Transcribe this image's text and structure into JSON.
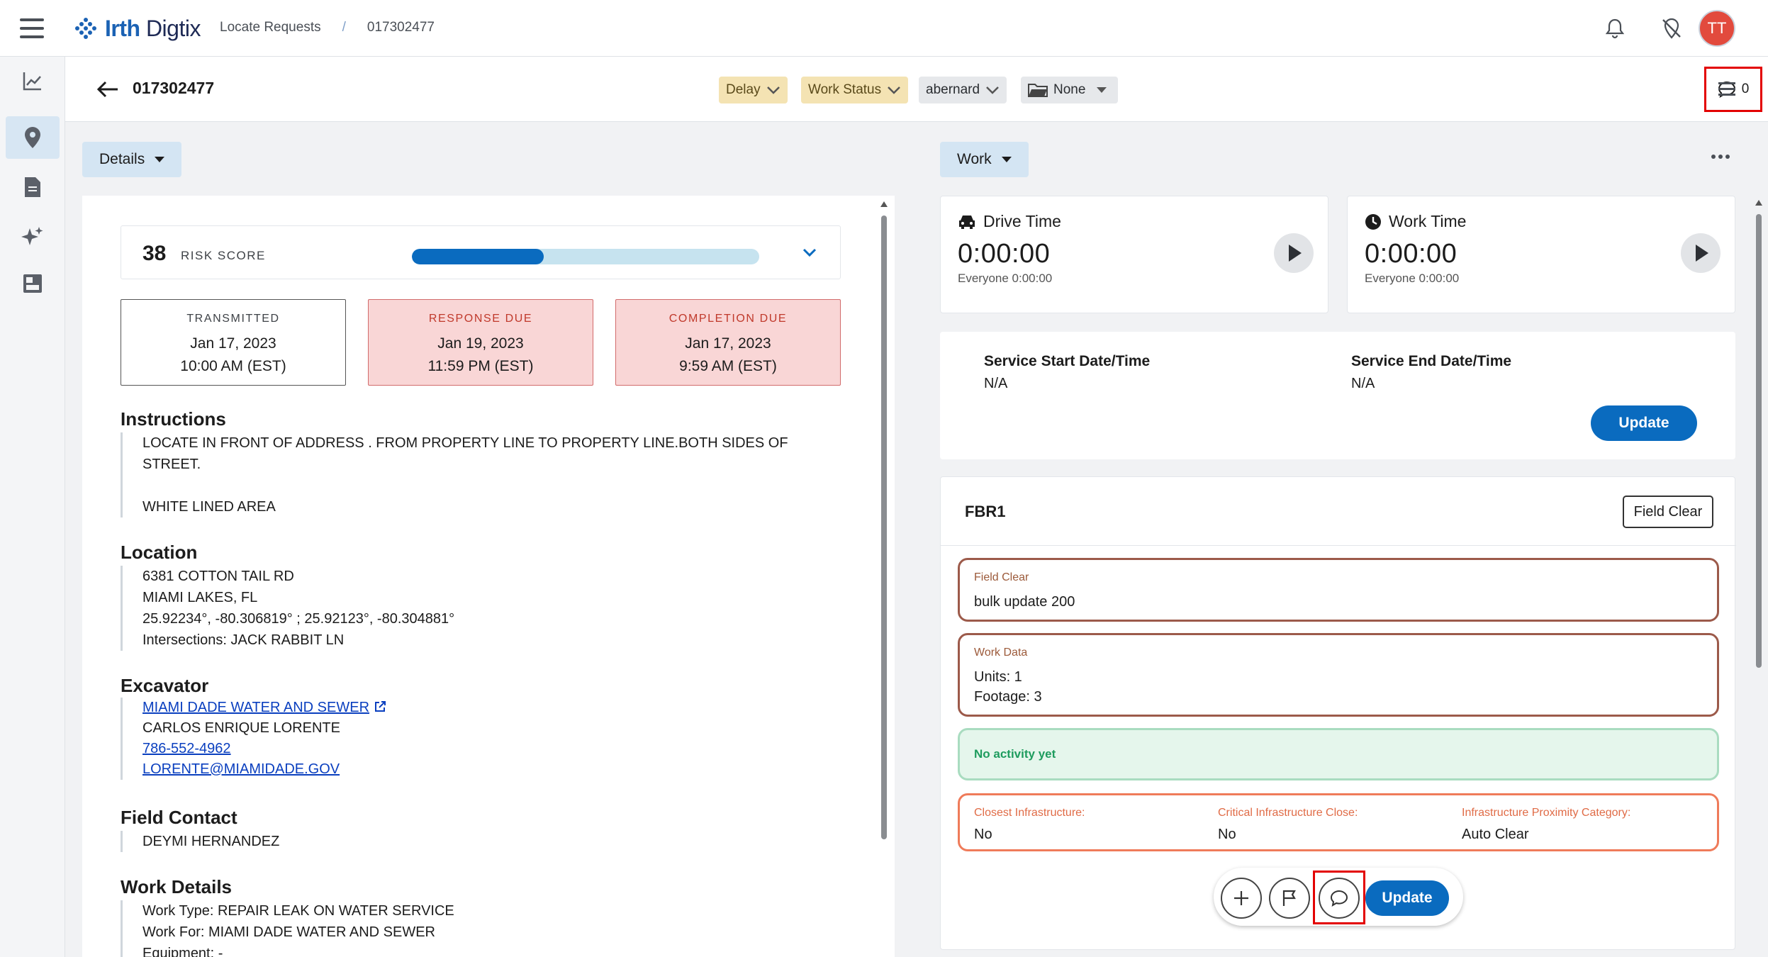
{
  "header": {
    "brand_bold": "Irth",
    "brand_rest": " Digtix",
    "breadcrumb": [
      "Locate Requests",
      "/",
      "017302477"
    ],
    "avatar_initials": "TT"
  },
  "subheader": {
    "ticket_number": "017302477",
    "chips": {
      "delay": "Delay",
      "work_status": "Work Status",
      "user": "abernard",
      "folder": "None"
    },
    "comment_count": "0"
  },
  "left": {
    "section_label": "Details",
    "risk": {
      "score": "38",
      "label": "RISK SCORE",
      "fill_fraction": 0.38
    },
    "dates": [
      {
        "label": "TRANSMITTED",
        "date": "Jan 17, 2023",
        "time": "10:00 AM (EST)",
        "style": "normal"
      },
      {
        "label": "RESPONSE DUE",
        "date": "Jan 19, 2023",
        "time": "11:59 PM (EST)",
        "style": "due"
      },
      {
        "label": "COMPLETION DUE",
        "date": "Jan 17, 2023",
        "time": "9:59 AM (EST)",
        "style": "due"
      }
    ],
    "instructions": {
      "title": "Instructions",
      "line1": "LOCATE IN FRONT OF ADDRESS . FROM PROPERTY LINE TO PROPERTY LINE.BOTH SIDES OF",
      "line2": "STREET.",
      "line3": "WHITE LINED AREA"
    },
    "location": {
      "title": "Location",
      "address": "6381 COTTON TAIL RD",
      "city": "MIAMI LAKES, FL",
      "coords": "25.92234°, -80.306819° ; 25.92123°, -80.304881°",
      "intersections": "Intersections: JACK RABBIT LN"
    },
    "excavator": {
      "title": "Excavator",
      "company": "MIAMI DADE WATER AND SEWER",
      "contact": "CARLOS ENRIQUE LORENTE",
      "phone": "786-552-4962",
      "email": "LORENTE@MIAMIDADE.GOV"
    },
    "field_contact": {
      "title": "Field Contact",
      "name": "DEYMI HERNANDEZ"
    },
    "work_details": {
      "title": "Work Details",
      "type": "Work Type: REPAIR LEAK ON WATER SERVICE",
      "for": "Work For: MIAMI DADE WATER AND SEWER",
      "equipment": "Equipment: -"
    }
  },
  "right": {
    "section_label": "Work",
    "drive": {
      "title": "Drive Time",
      "value": "0:00:00",
      "sub": "Everyone 0:00:00"
    },
    "work": {
      "title": "Work Time",
      "value": "0:00:00",
      "sub": "Everyone 0:00:00"
    },
    "service": {
      "start_label": "Service Start Date/Time",
      "start_value": "N/A",
      "end_label": "Service End Date/Time",
      "end_value": "N/A",
      "update_label": "Update"
    },
    "fbr": {
      "title": "FBR1",
      "field_clear_btn": "Field Clear",
      "field_clear_label": "Field Clear",
      "field_clear_value": "bulk update 200",
      "work_data_label": "Work Data",
      "units": "Units: 1",
      "footage": "Footage: 3",
      "no_activity": "No activity yet",
      "closest_label": "Closest Infrastructure:",
      "closest_value": "No",
      "critical_label": "Critical Infrastructure Close:",
      "critical_value": "No",
      "proximity_label": "Infrastructure Proximity Category:",
      "proximity_value": "Auto Clear",
      "update_label": "Update"
    }
  }
}
